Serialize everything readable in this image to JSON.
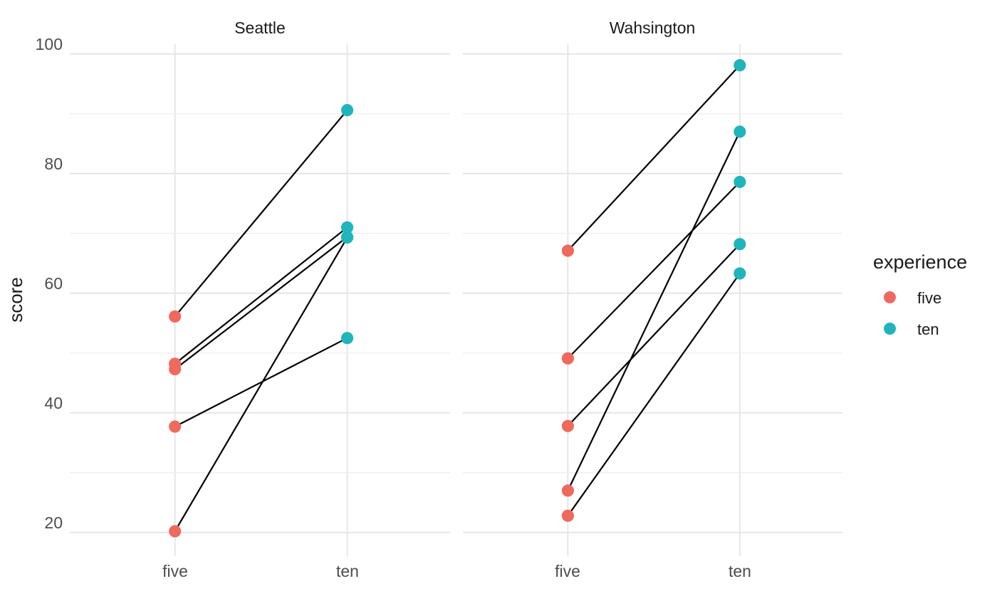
{
  "chart_data": {
    "type": "scatter",
    "subtype": "paired-dot-line (slopegraph), faceted",
    "x_categories": [
      "five",
      "ten"
    ],
    "xlabel": "",
    "ylabel": "score",
    "y_tick_labels": [
      "100",
      "80",
      "60",
      "40",
      "20"
    ],
    "y_ticks": [
      100,
      80,
      60,
      40,
      20
    ],
    "y_minor_ticks": [
      90,
      70,
      50,
      30
    ],
    "ylim": [
      16,
      101.6
    ],
    "grid": true,
    "legend_position": "right",
    "facets": [
      {
        "title": "Seattle",
        "pairs": [
          {
            "five": 56.1,
            "ten": 90.6
          },
          {
            "five": 48.2,
            "ten": 71.0
          },
          {
            "five": 47.3,
            "ten": 69.4
          },
          {
            "five": 37.7,
            "ten": 52.5
          },
          {
            "five": 20.2,
            "ten": 69.3
          }
        ]
      },
      {
        "title": "Wahsington",
        "pairs": [
          {
            "five": 67.1,
            "ten": 98.1
          },
          {
            "five": 49.1,
            "ten": 78.6
          },
          {
            "five": 37.8,
            "ten": 68.2
          },
          {
            "five": 27.0,
            "ten": 87.0
          },
          {
            "five": 22.8,
            "ten": 63.3
          }
        ]
      }
    ],
    "legend": {
      "title": "experience",
      "items": [
        {
          "label": "five",
          "color": "#EE6A5E"
        },
        {
          "label": "ten",
          "color": "#20B5BA"
        }
      ]
    },
    "colors": {
      "point_five": "#EE6A5E",
      "point_ten": "#20B5BA",
      "segment": "#000000",
      "grid_major": "#E4E4E4",
      "grid_minor": "#EFEFEF"
    }
  }
}
